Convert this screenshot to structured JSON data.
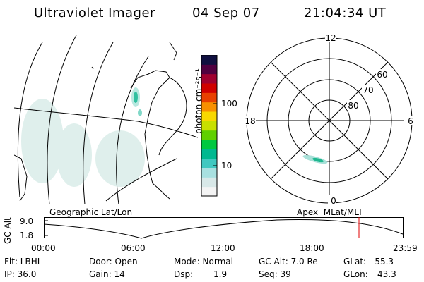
{
  "header": {
    "title": "Ultraviolet Imager",
    "date": "04 Sep 07",
    "time": "21:04:34 UT"
  },
  "colorbar": {
    "unit_label": "photon cm⁻²s⁻¹",
    "ticks": [
      "100",
      "10"
    ],
    "colors": [
      "#f4f4f4",
      "#d8e8e8",
      "#a8e0e0",
      "#40c8c0",
      "#00b890",
      "#00c840",
      "#60d000",
      "#c8e000",
      "#f8d800",
      "#f89000",
      "#e84000",
      "#d00000",
      "#a00030",
      "#500040",
      "#101040"
    ]
  },
  "polar_plot": {
    "mlt_labels": {
      "top": "12",
      "left": "18",
      "right": "6",
      "bottom": "0"
    },
    "lat_labels": [
      "60",
      "70",
      "80"
    ]
  },
  "map_labels": {
    "left": "Geographic Lat/Lon",
    "right": "Apex  MLat/MLT"
  },
  "altitude_plot": {
    "ylabel": "GC Alt",
    "yticks": [
      "9.0",
      "1.8"
    ],
    "xticks": [
      "00:00",
      "06:00",
      "12:00",
      "18:00",
      "23:59"
    ],
    "current_time_marker": "21:04:34"
  },
  "status": {
    "filter": "Flt: LBHL",
    "ip": "IP: 36.0",
    "door": "Door: Open",
    "gain": "Gain: 14",
    "mode": "Mode: Normal",
    "dsp_label": "Dsp:",
    "dsp_value": "1.9",
    "gc_alt": "GC Alt: 7.0 Re",
    "seq": "Seq: 39",
    "glat_label": "GLat:",
    "glat_value": "-55.3",
    "glon_label": "GLon:",
    "glon_value": "43.3"
  }
}
